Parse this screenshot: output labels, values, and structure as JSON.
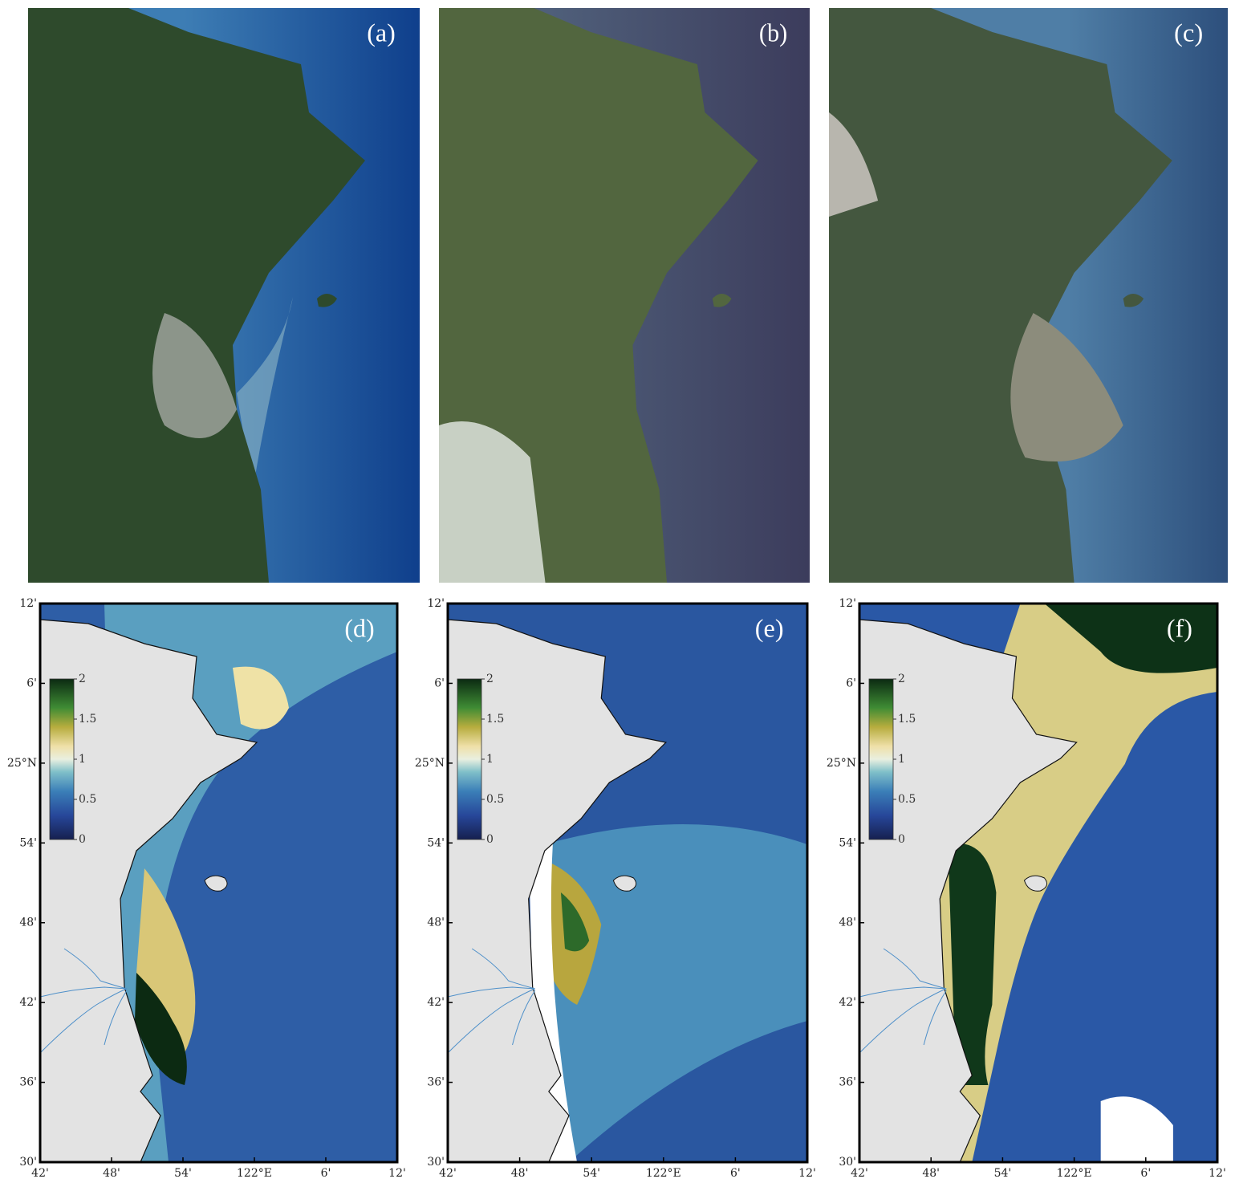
{
  "panels": [
    {
      "label": "(a)"
    },
    {
      "label": "(b)"
    },
    {
      "label": "(c)"
    },
    {
      "label": "(d)"
    },
    {
      "label": "(e)"
    },
    {
      "label": "(f)"
    }
  ],
  "map_axes": {
    "latlim": [
      24.5,
      25.2
    ],
    "lonlim": [
      121.7,
      122.2
    ],
    "lat_ticks": [
      {
        "value": 25.2,
        "label": "12'"
      },
      {
        "value": 25.1,
        "label": "6'"
      },
      {
        "value": 25.0,
        "label": "25°N"
      },
      {
        "value": 24.9,
        "label": "54'"
      },
      {
        "value": 24.8,
        "label": "48'"
      },
      {
        "value": 24.7,
        "label": "42'"
      },
      {
        "value": 24.6,
        "label": "36'"
      },
      {
        "value": 24.5,
        "label": "30'"
      }
    ],
    "lon_ticks": [
      {
        "value": 121.7,
        "label": "42'"
      },
      {
        "value": 121.8,
        "label": "48'"
      },
      {
        "value": 121.9,
        "label": "54'"
      },
      {
        "value": 122.0,
        "label": "122°E"
      },
      {
        "value": 122.1,
        "label": "6'"
      },
      {
        "value": 122.2,
        "label": "12'"
      }
    ]
  },
  "colorbar": {
    "range": [
      0,
      2
    ],
    "ticks": [
      0,
      0.5,
      1,
      1.5,
      2
    ]
  }
}
